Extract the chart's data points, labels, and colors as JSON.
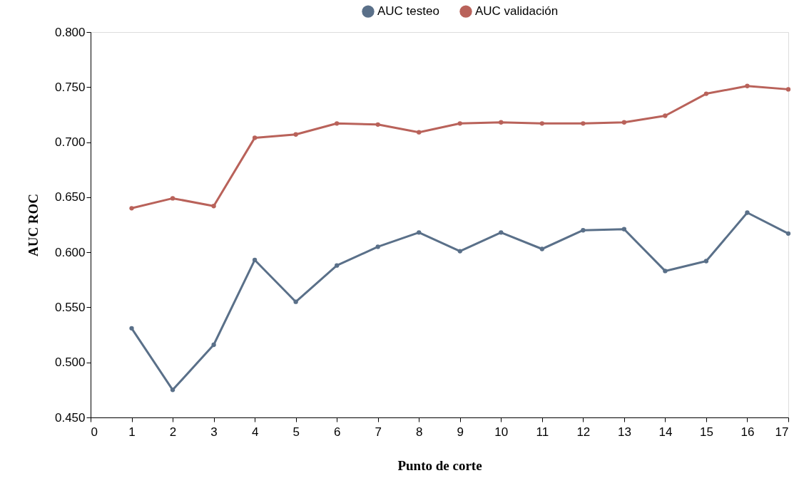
{
  "chart_data": {
    "type": "line",
    "xlabel": "Punto de corte",
    "ylabel": "AUC ROC",
    "x": [
      1,
      2,
      3,
      4,
      5,
      6,
      7,
      8,
      9,
      10,
      11,
      12,
      13,
      14,
      15,
      16,
      17
    ],
    "series": [
      {
        "name": "AUC testeo",
        "color": "#5a7089",
        "values": [
          0.531,
          0.475,
          0.516,
          0.593,
          0.555,
          0.588,
          0.605,
          0.618,
          0.601,
          0.618,
          0.603,
          0.62,
          0.621,
          0.583,
          0.592,
          0.636,
          0.617
        ]
      },
      {
        "name": "AUC validación",
        "color": "#b9625a",
        "values": [
          0.64,
          0.649,
          0.642,
          0.704,
          0.707,
          0.717,
          0.716,
          0.709,
          0.717,
          0.718,
          0.717,
          0.717,
          0.718,
          0.724,
          0.744,
          0.751,
          0.748
        ]
      }
    ],
    "xlim": [
      0,
      17
    ],
    "xticks": [
      0,
      1,
      2,
      3,
      4,
      5,
      6,
      7,
      8,
      9,
      10,
      11,
      12,
      13,
      14,
      15,
      16,
      17
    ],
    "ylim": [
      0.45,
      0.8
    ],
    "yticks": [
      {
        "value": 0.45,
        "label": "0.450"
      },
      {
        "value": 0.5,
        "label": "0.500"
      },
      {
        "value": 0.55,
        "label": "0.550"
      },
      {
        "value": 0.6,
        "label": "0.600"
      },
      {
        "value": 0.65,
        "label": "0.650"
      },
      {
        "value": 0.7,
        "label": "0.700"
      },
      {
        "value": 0.75,
        "label": "0.750"
      },
      {
        "value": 0.8,
        "label": "0.800"
      }
    ],
    "grid": false,
    "legend": "top",
    "marker": "circle",
    "line_style": "solid"
  }
}
